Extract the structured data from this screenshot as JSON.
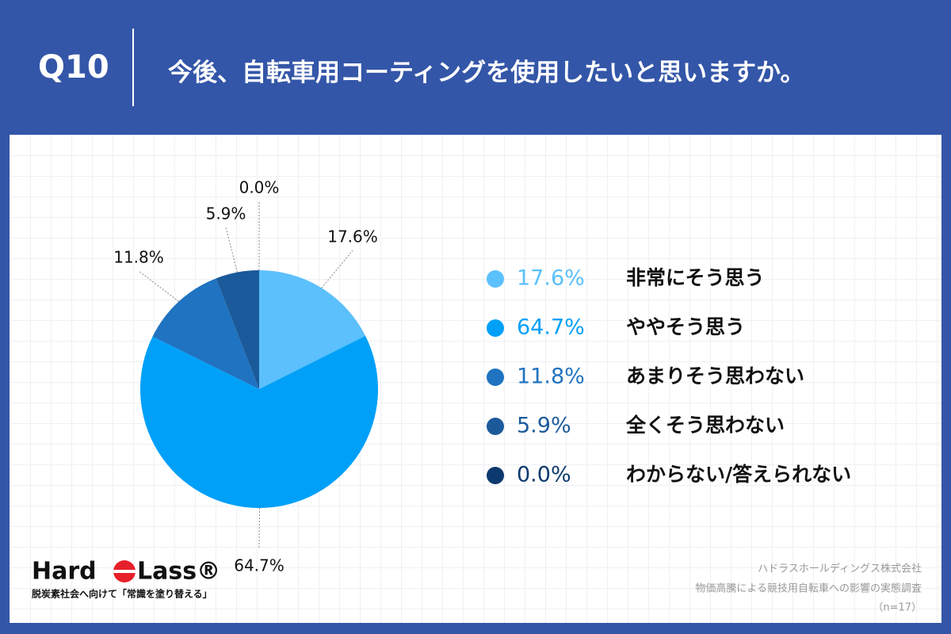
{
  "chart_data": {
    "type": "pie",
    "question_number": "Q10",
    "title": "今後、自転車用コーティングを使用したいと思いますか。",
    "categories": [
      "非常にそう思う",
      "ややそう思う",
      "あまりそう思わない",
      "全くそう思わない",
      "わからない/答えられない"
    ],
    "values": [
      17.6,
      64.7,
      11.8,
      5.9,
      0.0
    ],
    "value_labels": [
      "17.6%",
      "64.7%",
      "11.8%",
      "5.9%",
      "0.0%"
    ],
    "colors": [
      "#5bc0fb",
      "#00a0f8",
      "#1f73c0",
      "#1b5a9a",
      "#0d3a6e"
    ],
    "source": [
      "ハドラスホールディングス株式会社",
      "物価高騰による競技用自転車への影響の実態調査"
    ],
    "note": "（n=17）"
  },
  "logo": {
    "left": "Hard",
    "right": "Lass®",
    "tagline": "脱炭素社会へ向けて「常識を塗り替える」"
  }
}
